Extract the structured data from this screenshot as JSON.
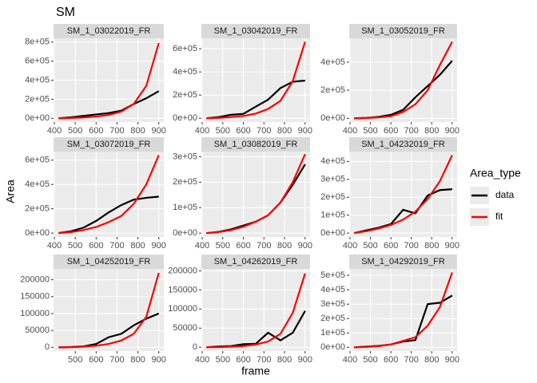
{
  "title": "SM",
  "x_label": "frame",
  "y_label": "Area",
  "legend_title": "Area_type",
  "chart_data": [
    {
      "type": "line",
      "title": "SM_1_03022019_FR",
      "x": [
        420,
        480,
        540,
        600,
        660,
        720,
        780,
        840,
        900
      ],
      "xlim": [
        396,
        924
      ],
      "xticks": [
        400,
        500,
        600,
        700,
        800,
        900
      ],
      "ylim": [
        -40000,
        840000
      ],
      "yticks": [
        {
          "value": 0,
          "label": "0e+00"
        },
        {
          "value": 200000,
          "label": "2e+05"
        },
        {
          "value": 400000,
          "label": "4e+05"
        },
        {
          "value": 600000,
          "label": "6e+05"
        },
        {
          "value": 800000,
          "label": "8e+05"
        }
      ],
      "series": [
        {
          "name": "data",
          "color": "#000000",
          "values": [
            0,
            10000,
            25000,
            40000,
            55000,
            80000,
            150000,
            210000,
            285000
          ]
        },
        {
          "name": "fit",
          "color": "#ff0000",
          "values": [
            0,
            3000,
            8000,
            18000,
            35000,
            70000,
            150000,
            340000,
            790000
          ]
        }
      ]
    },
    {
      "type": "line",
      "title": "SM_1_03042019_FR",
      "x": [
        420,
        480,
        540,
        600,
        660,
        720,
        780,
        840,
        900
      ],
      "xlim": [
        396,
        924
      ],
      "xticks": [
        400,
        500,
        600,
        700,
        800,
        900
      ],
      "ylim": [
        -33000,
        690000
      ],
      "yticks": [
        {
          "value": 0,
          "label": "0e+00"
        },
        {
          "value": 200000,
          "label": "2e+05"
        },
        {
          "value": 400000,
          "label": "4e+05"
        },
        {
          "value": 600000,
          "label": "6e+05"
        }
      ],
      "series": [
        {
          "name": "data",
          "color": "#000000",
          "values": [
            0,
            10000,
            30000,
            38000,
            100000,
            160000,
            260000,
            315000,
            325000
          ]
        },
        {
          "name": "fit",
          "color": "#ff0000",
          "values": [
            0,
            3000,
            10000,
            20000,
            40000,
            80000,
            150000,
            320000,
            660000
          ]
        }
      ]
    },
    {
      "type": "line",
      "title": "SM_1_03052019_FR",
      "x": [
        420,
        480,
        540,
        600,
        660,
        720,
        780,
        840,
        900
      ],
      "xlim": [
        396,
        924
      ],
      "xticks": [
        400,
        500,
        600,
        700,
        800,
        900
      ],
      "ylim": [
        -27000,
        570000
      ],
      "yticks": [
        {
          "value": 0,
          "label": "0e+00"
        },
        {
          "value": 200000,
          "label": "2e+05"
        },
        {
          "value": 400000,
          "label": "4e+05"
        }
      ],
      "series": [
        {
          "name": "data",
          "color": "#000000",
          "values": [
            0,
            3000,
            10000,
            25000,
            60000,
            150000,
            230000,
            310000,
            410000
          ]
        },
        {
          "name": "fit",
          "color": "#ff0000",
          "values": [
            0,
            2000,
            6000,
            15000,
            45000,
            100000,
            200000,
            380000,
            545000
          ]
        }
      ]
    },
    {
      "type": "line",
      "title": "SM_1_03072019_FR",
      "x": [
        420,
        480,
        540,
        600,
        660,
        720,
        780,
        840,
        900
      ],
      "xlim": [
        396,
        924
      ],
      "xticks": [
        400,
        500,
        600,
        700,
        800,
        900
      ],
      "ylim": [
        -32000,
        670000
      ],
      "yticks": [
        {
          "value": 0,
          "label": "0e+00"
        },
        {
          "value": 200000,
          "label": "2e+05"
        },
        {
          "value": 400000,
          "label": "4e+05"
        },
        {
          "value": 600000,
          "label": "6e+05"
        }
      ],
      "series": [
        {
          "name": "data",
          "color": "#000000",
          "values": [
            0,
            15000,
            45000,
            100000,
            170000,
            230000,
            275000,
            290000,
            300000
          ]
        },
        {
          "name": "fit",
          "color": "#ff0000",
          "values": [
            0,
            8000,
            25000,
            50000,
            90000,
            140000,
            240000,
            400000,
            640000
          ]
        }
      ]
    },
    {
      "type": "line",
      "title": "SM_1_03082019_FR",
      "x": [
        420,
        480,
        540,
        600,
        660,
        720,
        780,
        840,
        900
      ],
      "xlim": [
        396,
        924
      ],
      "xticks": [
        400,
        500,
        600,
        700,
        800,
        900
      ],
      "ylim": [
        -15000,
        320000
      ],
      "yticks": [
        {
          "value": 0,
          "label": "0e+00"
        },
        {
          "value": 100000,
          "label": "1e+05"
        },
        {
          "value": 200000,
          "label": "2e+05"
        },
        {
          "value": 300000,
          "label": "3e+05"
        }
      ],
      "series": [
        {
          "name": "data",
          "color": "#000000",
          "values": [
            0,
            5000,
            15000,
            30000,
            45000,
            70000,
            120000,
            190000,
            270000
          ]
        },
        {
          "name": "fit",
          "color": "#ff0000",
          "values": [
            0,
            4000,
            12000,
            25000,
            45000,
            70000,
            120000,
            200000,
            310000
          ]
        }
      ]
    },
    {
      "type": "line",
      "title": "SM_1_04232019_FR",
      "x": [
        420,
        480,
        540,
        600,
        660,
        720,
        780,
        840,
        900
      ],
      "xlim": [
        396,
        924
      ],
      "xticks": [
        400,
        500,
        600,
        700,
        800,
        900
      ],
      "ylim": [
        -22000,
        455000
      ],
      "yticks": [
        {
          "value": 0,
          "label": "0e+00"
        },
        {
          "value": 100000,
          "label": "1e+05"
        },
        {
          "value": 200000,
          "label": "2e+05"
        },
        {
          "value": 300000,
          "label": "3e+05"
        },
        {
          "value": 400000,
          "label": "4e+05"
        }
      ],
      "series": [
        {
          "name": "data",
          "color": "#000000",
          "values": [
            0,
            15000,
            30000,
            50000,
            130000,
            110000,
            210000,
            240000,
            245000
          ]
        },
        {
          "name": "fit",
          "color": "#ff0000",
          "values": [
            0,
            10000,
            25000,
            45000,
            75000,
            120000,
            190000,
            290000,
            435000
          ]
        }
      ]
    },
    {
      "type": "line",
      "title": "SM_1_04252019_FR",
      "x": [
        420,
        480,
        540,
        600,
        660,
        720,
        780,
        840,
        900
      ],
      "xlim": [
        396,
        924
      ],
      "xticks": [
        500,
        600,
        700,
        800,
        900
      ],
      "ylim": [
        -11000,
        232000
      ],
      "yticks": [
        0,
        50000,
        100000,
        150000,
        200000
      ],
      "series": [
        {
          "name": "data",
          "color": "#000000",
          "values": [
            0,
            1000,
            3000,
            10000,
            30000,
            40000,
            65000,
            85000,
            100000
          ]
        },
        {
          "name": "fit",
          "color": "#ff0000",
          "values": [
            0,
            500,
            2000,
            5000,
            10000,
            20000,
            40000,
            90000,
            220000
          ]
        }
      ]
    },
    {
      "type": "line",
      "title": "SM_1_04262019_FR",
      "x": [
        420,
        480,
        540,
        600,
        660,
        720,
        780,
        840,
        900
      ],
      "xlim": [
        396,
        924
      ],
      "xticks": [
        400,
        500,
        600,
        700,
        800,
        900
      ],
      "ylim": [
        -10000,
        205000
      ],
      "yticks": [
        0,
        50000,
        100000,
        150000,
        200000
      ],
      "series": [
        {
          "name": "data",
          "color": "#000000",
          "values": [
            0,
            2000,
            3000,
            8000,
            9000,
            38000,
            18000,
            38000,
            95000
          ]
        },
        {
          "name": "fit",
          "color": "#ff0000",
          "values": [
            0,
            500,
            1500,
            3000,
            7000,
            15000,
            35000,
            90000,
            193000
          ]
        }
      ]
    },
    {
      "type": "line",
      "title": "SM_1_04292019_FR",
      "x": [
        420,
        480,
        540,
        600,
        660,
        720,
        780,
        840,
        900
      ],
      "xlim": [
        396,
        924
      ],
      "xticks": [
        400,
        500,
        600,
        700,
        800,
        900
      ],
      "ylim": [
        -26000,
        545000
      ],
      "yticks": [
        {
          "value": 0,
          "label": "0e+00"
        },
        {
          "value": 100000,
          "label": "1e+05"
        },
        {
          "value": 200000,
          "label": "2e+05"
        },
        {
          "value": 300000,
          "label": "3e+05"
        },
        {
          "value": 400000,
          "label": "4e+05"
        },
        {
          "value": 500000,
          "label": "5e+05"
        }
      ],
      "series": [
        {
          "name": "data",
          "color": "#000000",
          "values": [
            0,
            5000,
            10000,
            20000,
            40000,
            50000,
            300000,
            310000,
            360000
          ]
        },
        {
          "name": "fit",
          "color": "#ff0000",
          "values": [
            0,
            3000,
            8000,
            20000,
            45000,
            70000,
            150000,
            280000,
            520000
          ]
        }
      ]
    }
  ]
}
